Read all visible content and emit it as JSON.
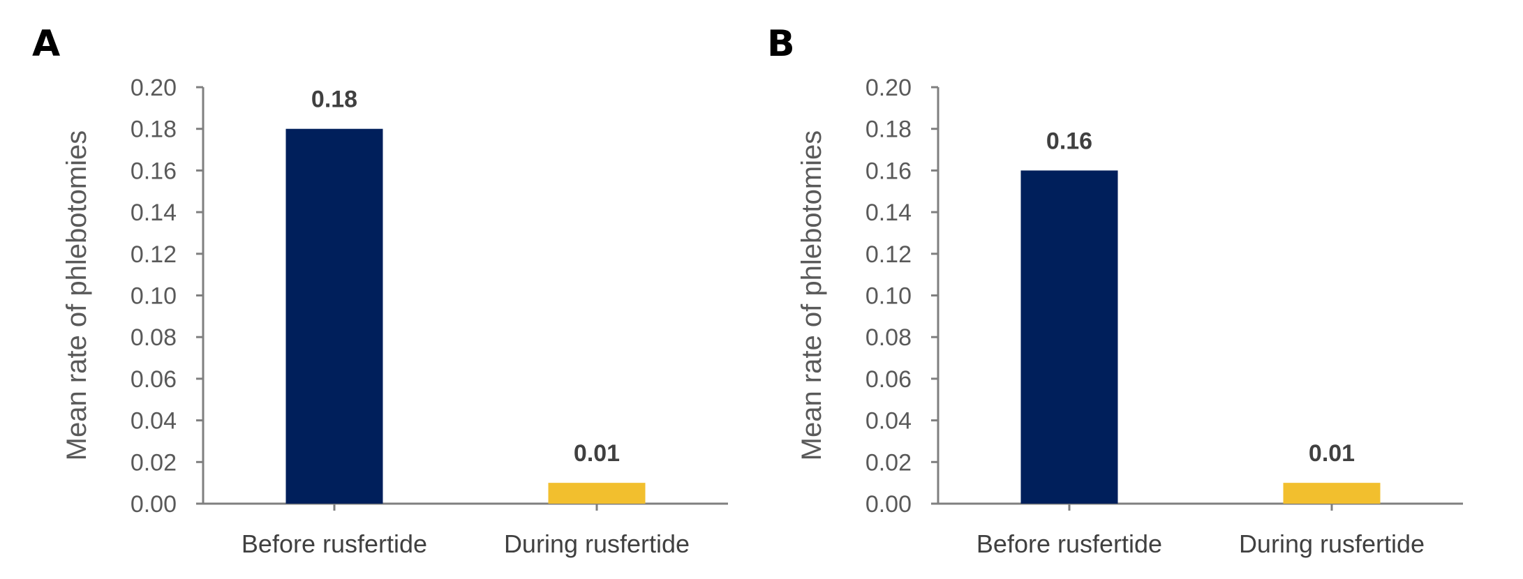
{
  "chart_data": [
    {
      "type": "bar",
      "panel": "A",
      "categories": [
        "Before rusfertide",
        "During rusfertide"
      ],
      "values": [
        0.18,
        0.01
      ],
      "value_labels": [
        "0.18",
        "0.01"
      ],
      "colors": [
        "#001f5b",
        "#f2bf2e"
      ],
      "xlabel": "",
      "ylabel": "Mean rate of phlebotomies",
      "ylim": [
        0,
        0.2
      ],
      "yticks": [
        "0.00",
        "0.02",
        "0.04",
        "0.06",
        "0.08",
        "0.10",
        "0.12",
        "0.14",
        "0.16",
        "0.18",
        "0.20"
      ],
      "grid": false
    },
    {
      "type": "bar",
      "panel": "B",
      "categories": [
        "Before rusfertide",
        "During rusfertide"
      ],
      "values": [
        0.16,
        0.01
      ],
      "value_labels": [
        "0.16",
        "0.01"
      ],
      "colors": [
        "#001f5b",
        "#f2bf2e"
      ],
      "xlabel": "",
      "ylabel": "Mean rate of phlebotomies",
      "ylim": [
        0,
        0.2
      ],
      "yticks": [
        "0.00",
        "0.02",
        "0.04",
        "0.06",
        "0.08",
        "0.10",
        "0.12",
        "0.14",
        "0.16",
        "0.18",
        "0.20"
      ],
      "grid": false
    }
  ]
}
